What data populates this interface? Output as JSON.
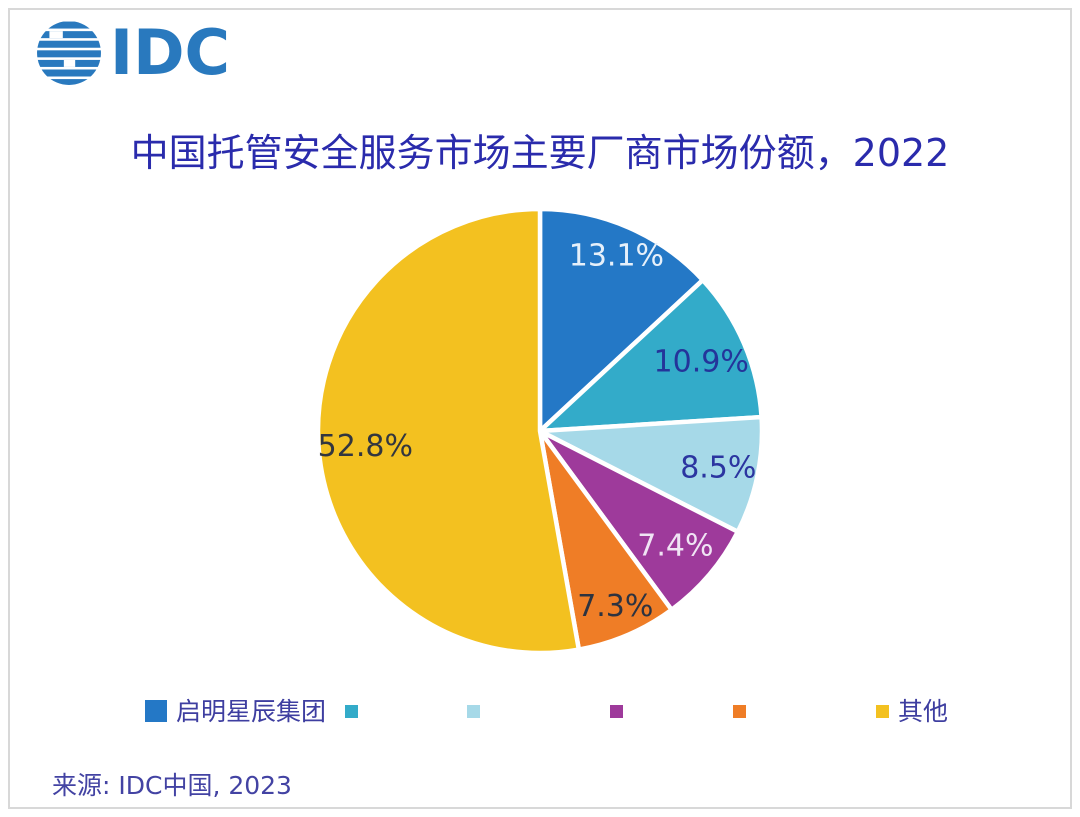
{
  "logo": {
    "text": "IDC"
  },
  "title": "中国托管安全服务市场主要厂商市场份额，2022",
  "source": "来源: IDC中国, 2023",
  "chart_data": {
    "type": "pie",
    "title": "中国托管安全服务市场主要厂商市场份额，2022",
    "unit": "percent market share",
    "start_angle_deg": 0,
    "direction": "clockwise",
    "legend_position": "bottom",
    "total": 100,
    "slices": [
      {
        "label": "启明星辰集团",
        "value": 13.1,
        "display": "13.1%",
        "color": "#2478C6",
        "label_color": "#E6F0FA",
        "label_r": 0.86
      },
      {
        "label": "",
        "value": 10.9,
        "display": "10.9%",
        "color": "#33ABC9",
        "label_color": "#24349A",
        "label_r": 0.79
      },
      {
        "label": "",
        "value": 8.5,
        "display": "8.5%",
        "color": "#A6D9E8",
        "label_color": "#2B35A0",
        "label_r": 0.82
      },
      {
        "label": "",
        "value": 7.4,
        "display": "7.4%",
        "color": "#9E3A9B",
        "label_color": "#F0E4F4",
        "label_r": 0.8
      },
      {
        "label": "",
        "value": 7.3,
        "display": "7.3%",
        "color": "#EF7D26",
        "label_color": "#2D3340",
        "label_r": 0.86
      },
      {
        "label": "其他",
        "value": 52.8,
        "display": "52.8%",
        "color": "#F3C120",
        "label_color": "#32363F",
        "label_r": 0.79
      }
    ]
  }
}
